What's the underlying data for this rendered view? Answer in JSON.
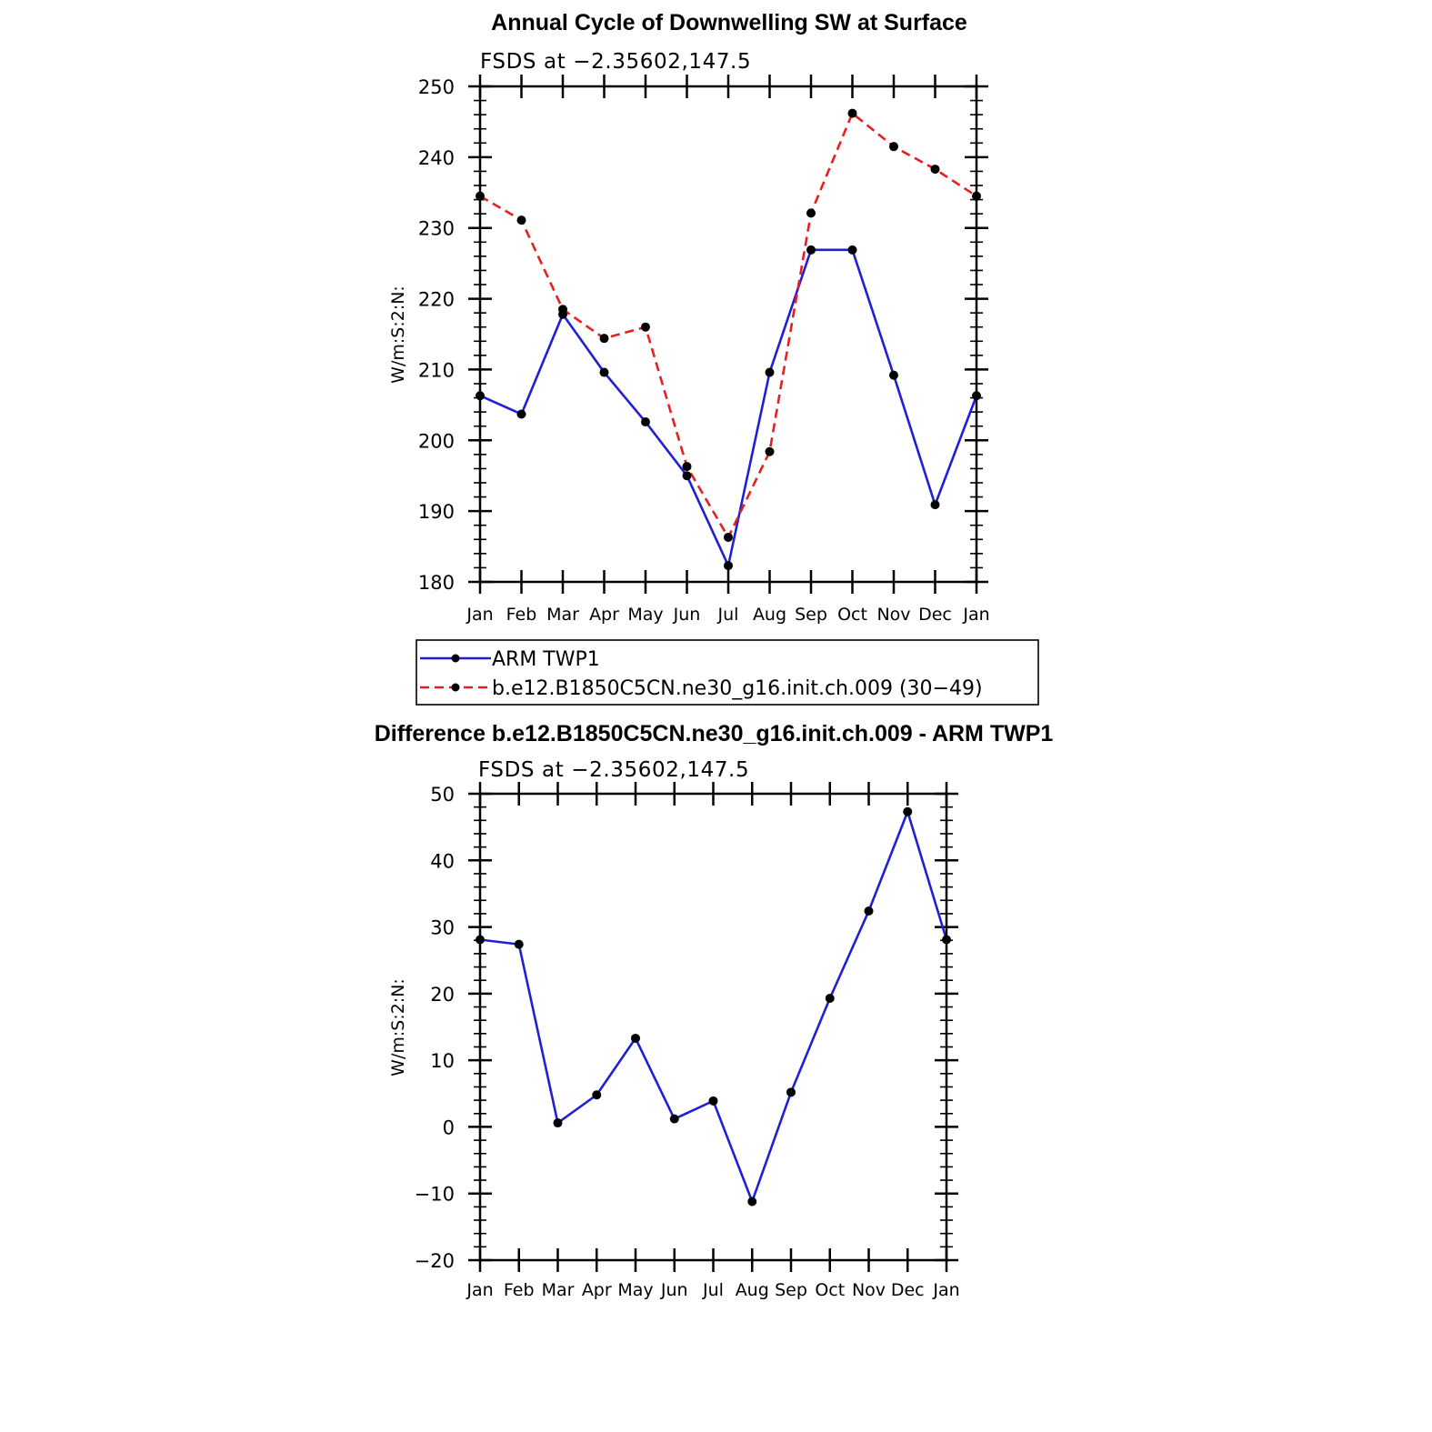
{
  "chart_data": [
    {
      "type": "line",
      "title": "Annual Cycle of Downwelling SW at Surface",
      "subtitle": "FSDS at −2.35602,147.5",
      "ylabel": "W/m:S:2:N:",
      "xlabel": "",
      "categories": [
        "Jan",
        "Feb",
        "Mar",
        "Apr",
        "May",
        "Jun",
        "Jul",
        "Aug",
        "Sep",
        "Oct",
        "Nov",
        "Dec",
        "Jan"
      ],
      "ylim": [
        180,
        250
      ],
      "yticks": [
        "180",
        "190",
        "200",
        "210",
        "220",
        "230",
        "240",
        "250"
      ],
      "grid": false,
      "legend_position": "bottom",
      "series": [
        {
          "name": "ARM TWP1",
          "color": "#1f1fd6",
          "dash": "solid",
          "values": [
            206.3,
            203.7,
            217.8,
            209.6,
            202.6,
            195.0,
            182.3,
            209.6,
            226.9,
            226.9,
            209.2,
            190.9,
            206.3
          ]
        },
        {
          "name": "b.e12.B1850C5CN.ne30_g16.init.ch.009 (30−49)",
          "color": "#e62020",
          "dash": "dashed",
          "values": [
            234.5,
            231.1,
            218.5,
            214.4,
            216.0,
            196.3,
            186.3,
            198.4,
            232.1,
            246.2,
            241.5,
            238.3,
            234.5
          ]
        }
      ]
    },
    {
      "type": "line",
      "title": "Difference b.e12.B1850C5CN.ne30_g16.init.ch.009 - ARM TWP1",
      "subtitle": "FSDS at −2.35602,147.5",
      "ylabel": "W/m:S:2:N:",
      "xlabel": "",
      "categories": [
        "Jan",
        "Feb",
        "Mar",
        "Apr",
        "May",
        "Jun",
        "Jul",
        "Aug",
        "Sep",
        "Oct",
        "Nov",
        "Dec",
        "Jan"
      ],
      "ylim": [
        -20,
        50
      ],
      "yticks": [
        "−20",
        "−10",
        "0",
        "10",
        "20",
        "30",
        "40",
        "50"
      ],
      "grid": false,
      "series": [
        {
          "color": "#1f1fd6",
          "dash": "solid",
          "values": [
            28.1,
            27.4,
            0.6,
            4.8,
            13.3,
            1.2,
            3.9,
            -11.2,
            5.2,
            19.3,
            32.4,
            47.3,
            28.1
          ]
        }
      ]
    }
  ]
}
